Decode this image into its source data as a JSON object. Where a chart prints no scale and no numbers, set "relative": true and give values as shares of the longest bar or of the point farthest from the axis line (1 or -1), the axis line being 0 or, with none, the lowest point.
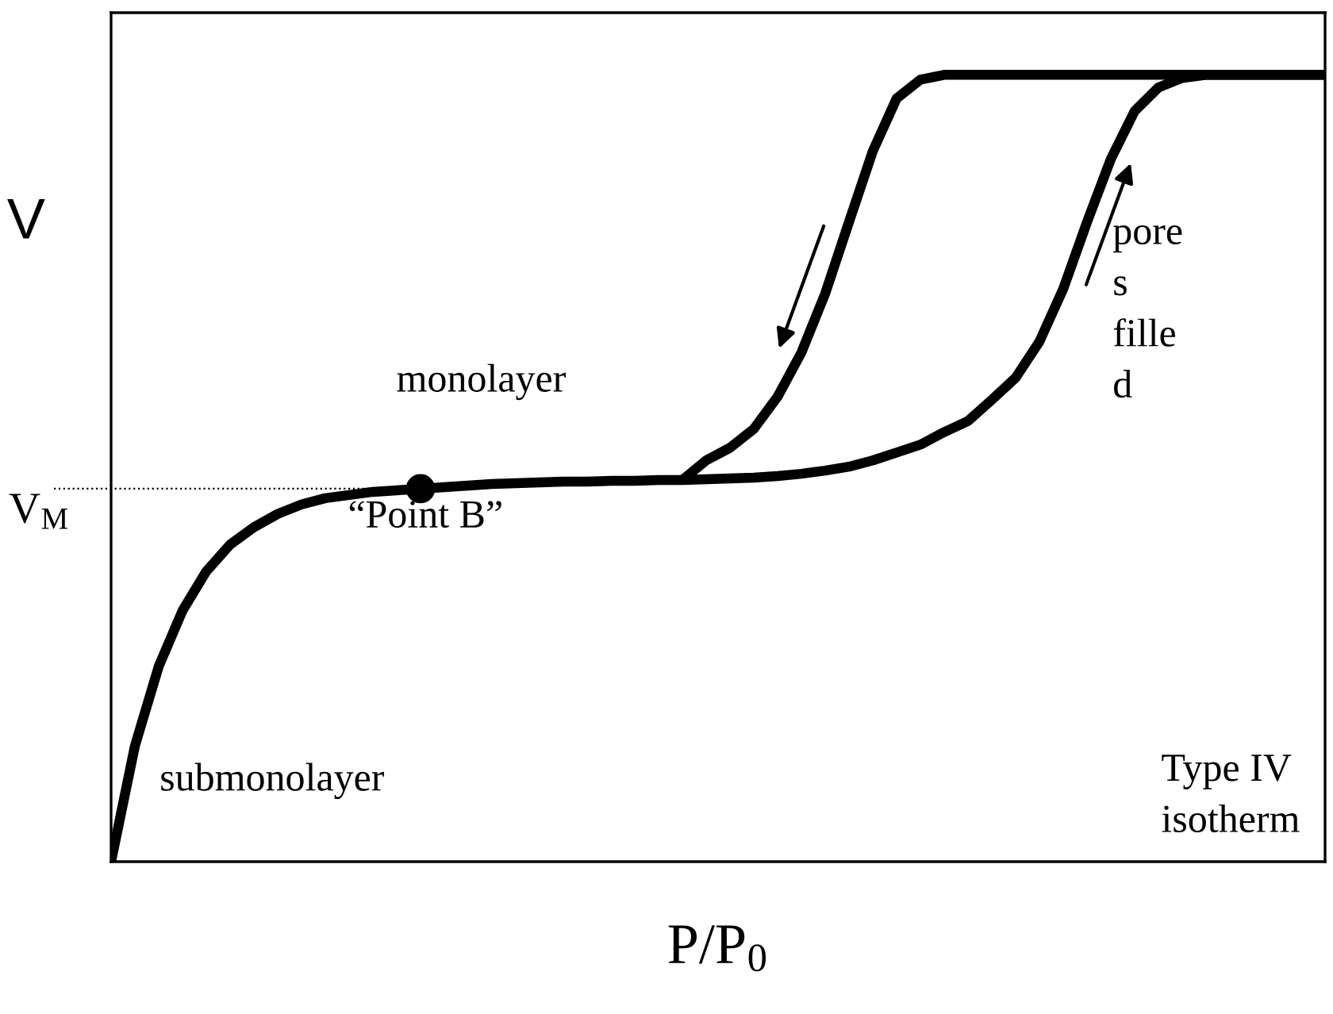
{
  "chart_data": {
    "type": "line",
    "relative": true,
    "xlabel": "P/P$_{0}$",
    "ylabel": "V",
    "tick_labels": false,
    "marker": "none",
    "line_style": "solid",
    "categories": [
      null,
      null,
      null,
      null,
      null,
      null,
      null,
      null,
      null,
      null,
      null,
      null,
      null,
      null,
      null,
      null,
      null,
      null,
      null,
      null,
      null,
      null,
      null,
      null,
      null,
      null,
      null,
      null,
      null,
      null,
      null,
      null,
      null,
      null,
      null,
      null,
      null,
      null,
      null,
      null,
      null,
      null,
      null,
      null,
      null,
      null,
      null,
      null,
      null,
      null,
      null,
      null
    ],
    "series": [
      {
        "color": "#000000",
        "values": [
          0,
          0.147,
          0.248,
          0.319,
          0.369,
          0.403,
          0.425,
          0.442,
          0.454,
          0.462,
          0.466,
          0.47,
          0.472,
          0.474,
          0.476,
          0.478,
          0.48,
          0.481,
          0.482,
          0.483,
          0.483,
          0.484,
          0.484,
          0.485,
          0.485,
          0.486,
          0.487,
          0.488,
          0.49,
          0.493,
          0.497,
          0.502,
          0.51,
          0.52,
          0.53,
          0.546,
          0.56,
          0.587,
          0.615,
          0.661,
          0.728,
          0.813,
          0.893,
          0.954,
          0.984,
          0.996,
          1,
          1,
          1,
          1,
          1,
          1
        ]
      },
      {
        "color": "#000000",
        "values": [
          null,
          null,
          null,
          null,
          null,
          null,
          null,
          null,
          null,
          null,
          null,
          null,
          null,
          null,
          null,
          null,
          null,
          null,
          null,
          null,
          null,
          null,
          null,
          null,
          0.485,
          0.51,
          0.526,
          0.55,
          0.591,
          0.647,
          0.722,
          0.813,
          0.903,
          0.97,
          0.994,
          1,
          1,
          1,
          1,
          1,
          1,
          1,
          1,
          1,
          1,
          1,
          1,
          1,
          1,
          1,
          1,
          1
        ]
      }
    ],
    "ref_lines": [
      {
        "axis": "y",
        "value": 0.474,
        "label": "V$_{M}$",
        "color": "#000000",
        "line_style": "dotted"
      }
    ],
    "annotations": [
      "monolayer",
      "“Point B”",
      "pore\ns\nfille\nd",
      "submonolayer",
      "Type IV\nisotherm"
    ]
  }
}
